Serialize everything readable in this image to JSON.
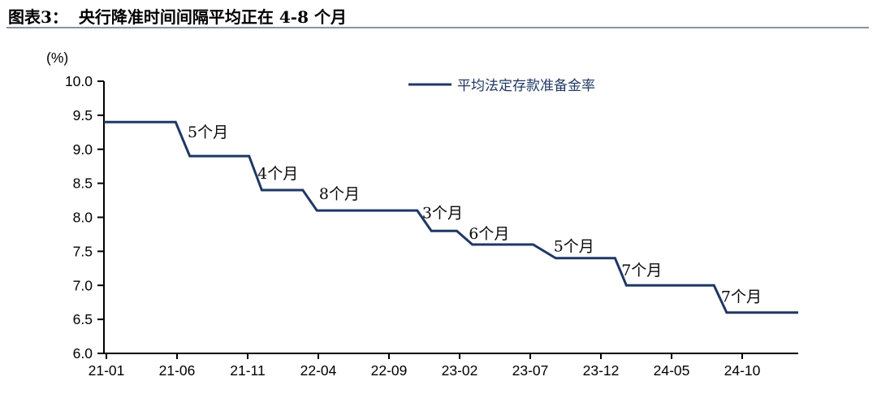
{
  "header": {
    "prefix": "图表3：",
    "title": "央行降准时间间隔平均正在 4-8 个月"
  },
  "chart_data": {
    "type": "line",
    "line_style": "step",
    "title": "央行降准时间间隔平均正在 4-8 个月",
    "unit_label": "(%)",
    "grid": false,
    "legend": {
      "label": "平均法定存款准备金率",
      "position": "top-center",
      "color": "#1f3864"
    },
    "y_axis": {
      "min": 6.0,
      "max": 10.0,
      "step": 0.5,
      "tick_labels": [
        "10.0",
        "9.5",
        "9.0",
        "8.5",
        "8.0",
        "7.5",
        "7.0",
        "6.5",
        "6.0"
      ]
    },
    "x_axis": {
      "tick_labels": [
        "21-01",
        "21-06",
        "21-11",
        "22-04",
        "22-09",
        "23-02",
        "23-07",
        "23-12",
        "24-05",
        "24-10"
      ],
      "months_per_tick": 5,
      "total_months": 49
    },
    "series": [
      {
        "name": "平均法定存款准备金率",
        "color": "#1f3864",
        "points_month_value": [
          [
            0,
            9.4
          ],
          [
            4.9,
            9.4
          ],
          [
            5.9,
            8.9
          ],
          [
            10.1,
            8.9
          ],
          [
            11.0,
            8.4
          ],
          [
            13.9,
            8.4
          ],
          [
            14.9,
            8.1
          ],
          [
            22.0,
            8.1
          ],
          [
            23.0,
            7.8
          ],
          [
            24.8,
            7.8
          ],
          [
            25.9,
            7.6
          ],
          [
            30.2,
            7.6
          ],
          [
            31.8,
            7.4
          ],
          [
            36.0,
            7.4
          ],
          [
            36.8,
            7.0
          ],
          [
            43.0,
            7.0
          ],
          [
            43.9,
            6.6
          ],
          [
            49.0,
            6.6
          ]
        ]
      }
    ],
    "rrr_levels": [
      {
        "from": "21-01",
        "value": 9.4
      },
      {
        "from": "21-07",
        "value": 8.9
      },
      {
        "from": "21-12",
        "value": 8.4
      },
      {
        "from": "22-04",
        "value": 8.1
      },
      {
        "from": "22-12",
        "value": 7.8
      },
      {
        "from": "23-03",
        "value": 7.6
      },
      {
        "from": "23-09",
        "value": 7.4
      },
      {
        "from": "24-02",
        "value": 7.0
      },
      {
        "from": "24-09",
        "value": 6.6
      }
    ],
    "annotations": [
      {
        "label": "5个月",
        "month": 5.75,
        "value": 9.26
      },
      {
        "label": "4个月",
        "month": 10.7,
        "value": 8.65
      },
      {
        "label": "8个月",
        "month": 15.05,
        "value": 8.35
      },
      {
        "label": "3个月",
        "month": 22.35,
        "value": 8.07
      },
      {
        "label": "6个月",
        "month": 25.65,
        "value": 7.77
      },
      {
        "label": "5个月",
        "month": 31.65,
        "value": 7.58
      },
      {
        "label": "7个月",
        "month": 36.45,
        "value": 7.23
      },
      {
        "label": "7个月",
        "month": 43.5,
        "value": 6.84
      }
    ]
  }
}
